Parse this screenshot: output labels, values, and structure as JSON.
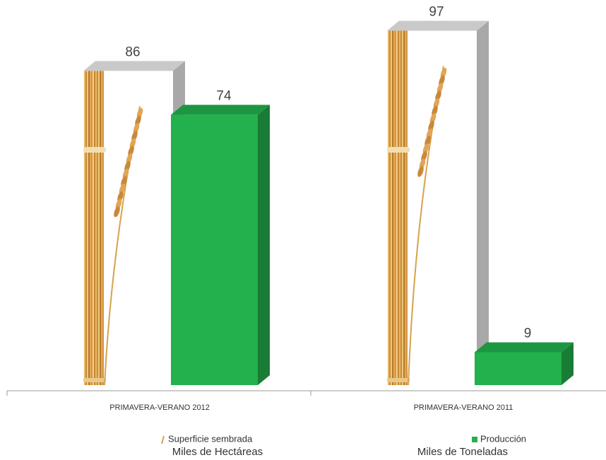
{
  "chart_data": {
    "type": "bar3d",
    "categories": [
      "PRIMAVERA-VERANO 2012",
      "PRIMAVERA-VERANO 2011"
    ],
    "series": [
      {
        "name": "Superficie sembrada",
        "unit": "Miles de Hectáreas",
        "color": "#d9a04f",
        "values": [
          86,
          97
        ]
      },
      {
        "name": "Producción",
        "unit": "Miles de Toneladas",
        "color": "#22b14c",
        "values": [
          74,
          9
        ]
      }
    ]
  }
}
